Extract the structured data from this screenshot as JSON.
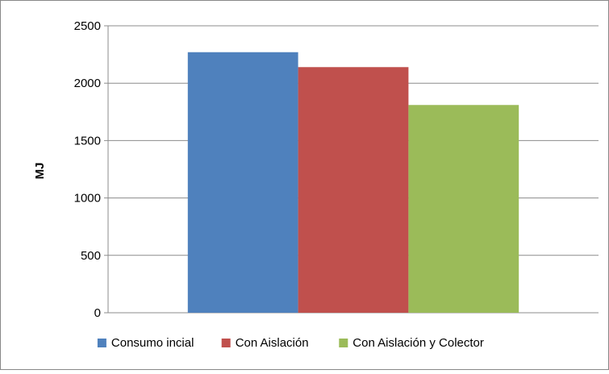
{
  "chart_data": {
    "type": "bar",
    "title": "",
    "xlabel": "",
    "ylabel": "MJ",
    "ylim": [
      0,
      2500
    ],
    "yticks": [
      0,
      500,
      1000,
      1500,
      2000,
      2500
    ],
    "grid": true,
    "legend_position": "bottom",
    "categories": [
      ""
    ],
    "series": [
      {
        "name": "Consumo incial",
        "values": [
          2270
        ],
        "color": "#4F81BD"
      },
      {
        "name": "Con Aislación",
        "values": [
          2140
        ],
        "color": "#C0504D"
      },
      {
        "name": "Con Aislación y Colector",
        "values": [
          1810
        ],
        "color": "#9BBB59"
      }
    ]
  }
}
